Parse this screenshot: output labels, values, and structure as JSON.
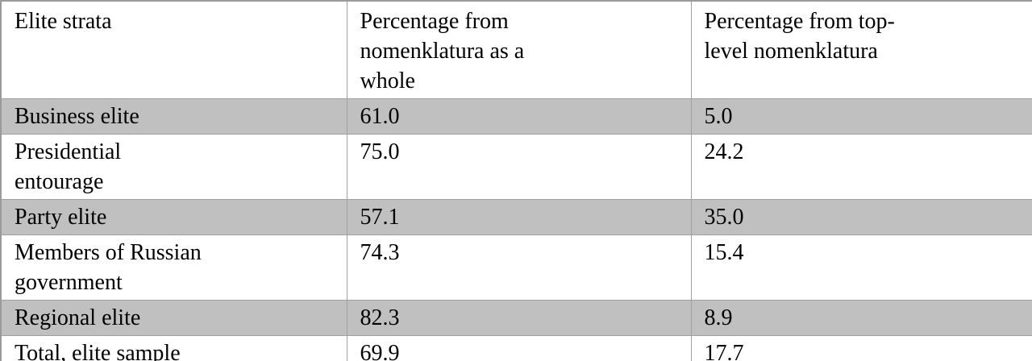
{
  "page": {
    "background_color": "#ffffff",
    "kind": "document-table"
  },
  "colors": {
    "shaded_row": "#c0c0c0",
    "unshaded_row": "#ffffff",
    "border": "#a0a0a0",
    "text": "#000000"
  },
  "table": {
    "columns": [
      "Elite strata",
      "Percentage from\nnomenklatura as a\nwhole",
      "Percentage from top-\nlevel nomenklatura"
    ],
    "rows": [
      {
        "strata": "Business elite",
        "pct_nomenklatura_whole": "61.0",
        "pct_top_level": "5.0",
        "shaded": true
      },
      {
        "strata": "Presidential\nentourage",
        "pct_nomenklatura_whole": "75.0",
        "pct_top_level": "24.2",
        "shaded": false
      },
      {
        "strata": "Party elite",
        "pct_nomenklatura_whole": "57.1",
        "pct_top_level": "35.0",
        "shaded": true
      },
      {
        "strata": "Members of Russian\ngovernment",
        "pct_nomenklatura_whole": "74.3",
        "pct_top_level": "15.4",
        "shaded": false
      },
      {
        "strata": "Regional elite",
        "pct_nomenklatura_whole": "82.3",
        "pct_top_level": "8.9",
        "shaded": true
      },
      {
        "strata": "Total, elite sample",
        "pct_nomenklatura_whole": "69.9",
        "pct_top_level": "17.7",
        "shaded": false
      }
    ]
  }
}
